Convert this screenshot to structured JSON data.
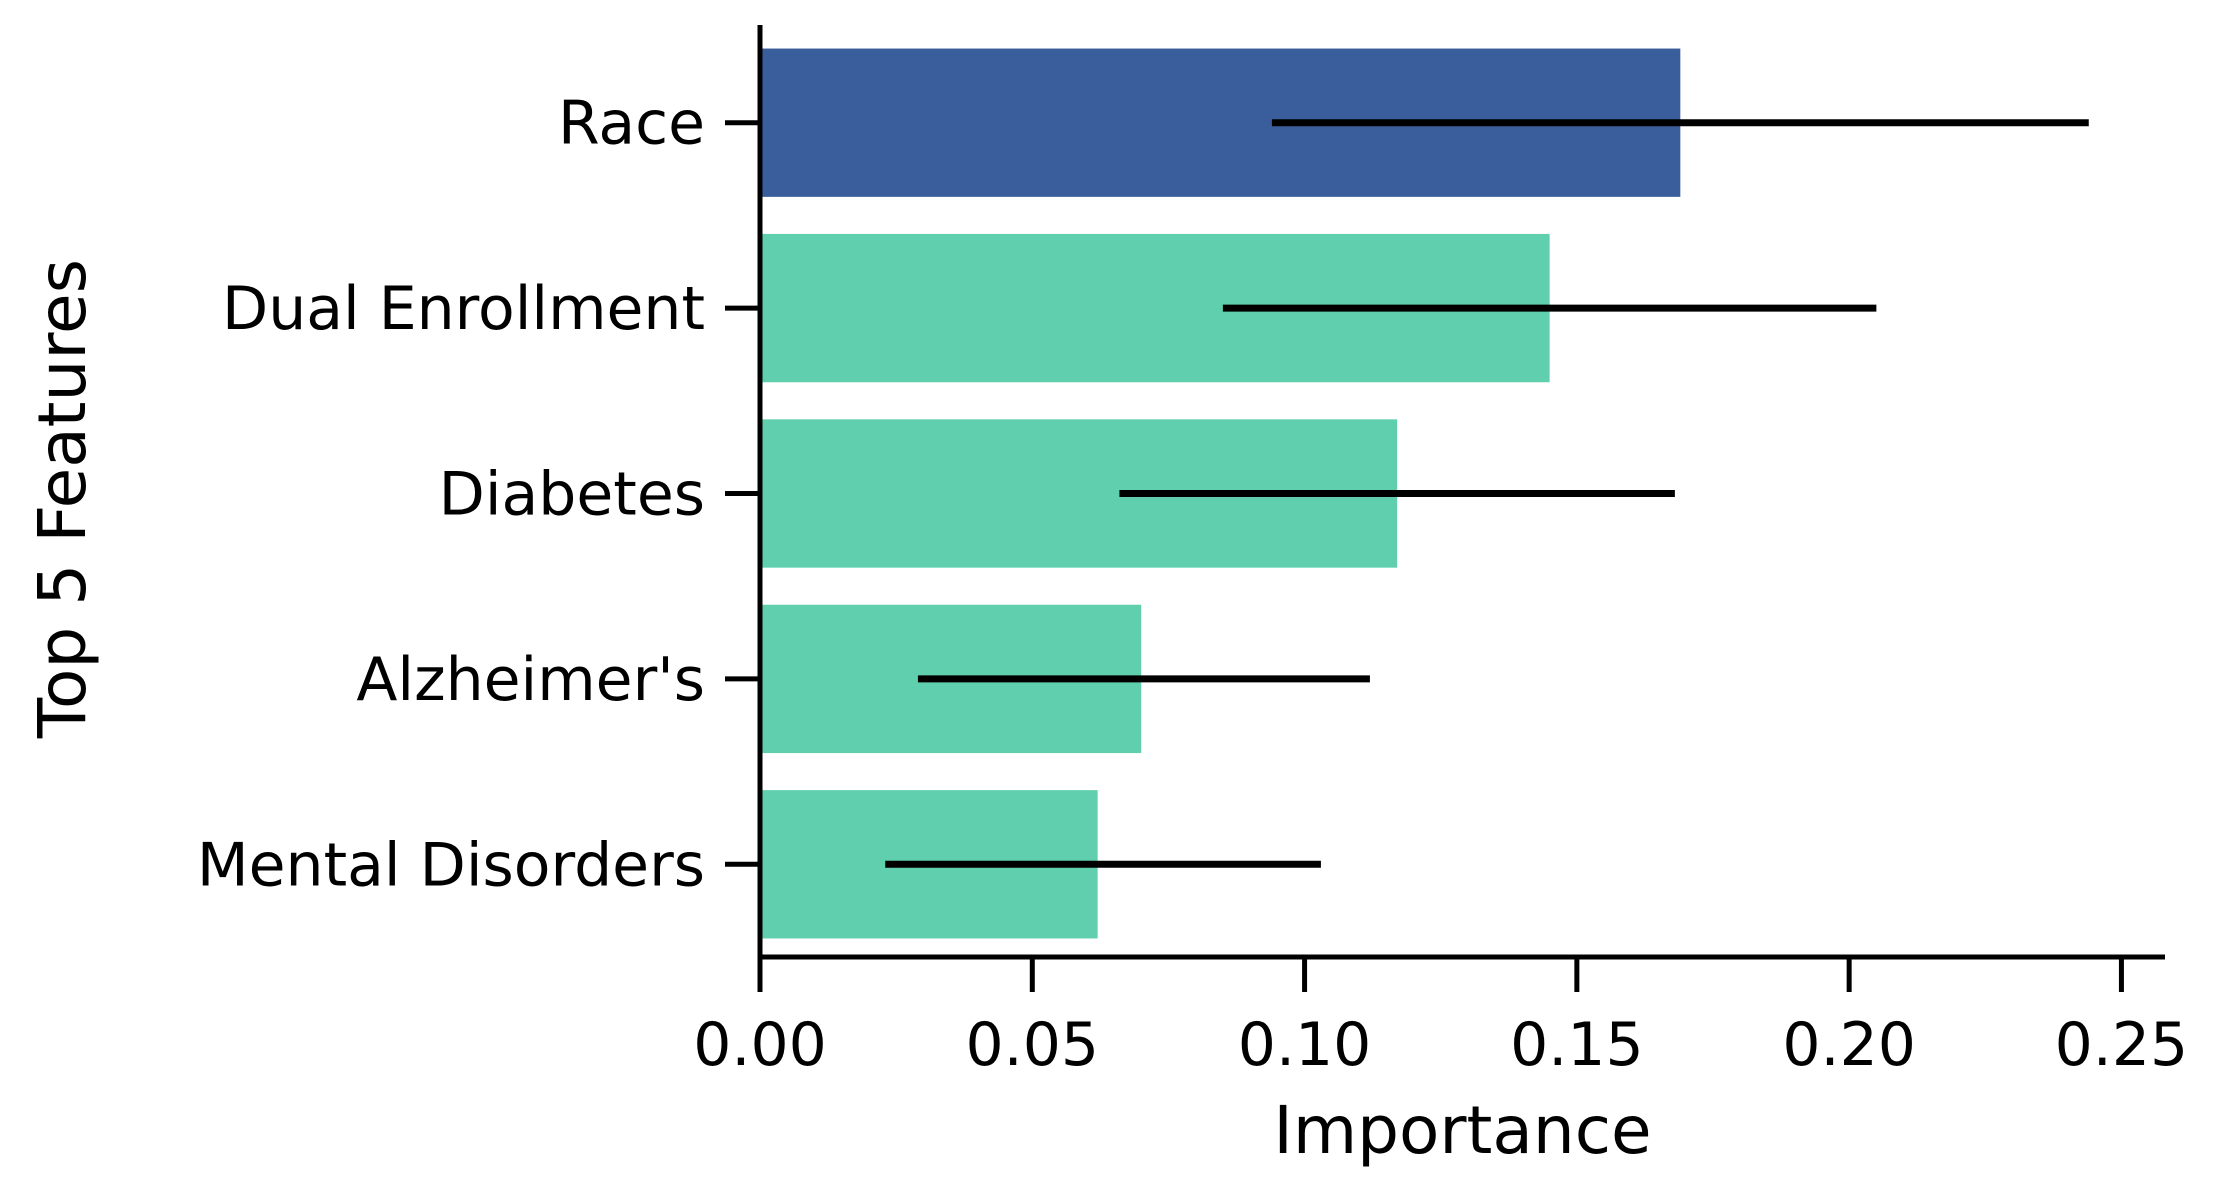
{
  "chart_data": {
    "type": "bar",
    "orientation": "horizontal",
    "xlabel": "Importance",
    "ylabel": "Top 5 Features",
    "xlim": [
      0.0,
      0.258
    ],
    "xticks": [
      0.0,
      0.05,
      0.1,
      0.15,
      0.2,
      0.25
    ],
    "xtick_labels": [
      "0.00",
      "0.05",
      "0.10",
      "0.15",
      "0.20",
      "0.25"
    ],
    "categories": [
      "Race",
      "Dual Enrollment",
      "Diabetes",
      "Alzheimer's",
      "Mental Disorders"
    ],
    "values": [
      0.169,
      0.145,
      0.117,
      0.07,
      0.062
    ],
    "error_low": [
      0.094,
      0.085,
      0.066,
      0.029,
      0.023
    ],
    "error_high": [
      0.244,
      0.205,
      0.168,
      0.112,
      0.103
    ],
    "bar_colors": [
      "#3a5e9c",
      "#5fcfad",
      "#5fcfad",
      "#5fcfad",
      "#5fcfad"
    ],
    "error_color": "#000000",
    "axis_color": "#000000",
    "grid": false,
    "legend": "none"
  }
}
